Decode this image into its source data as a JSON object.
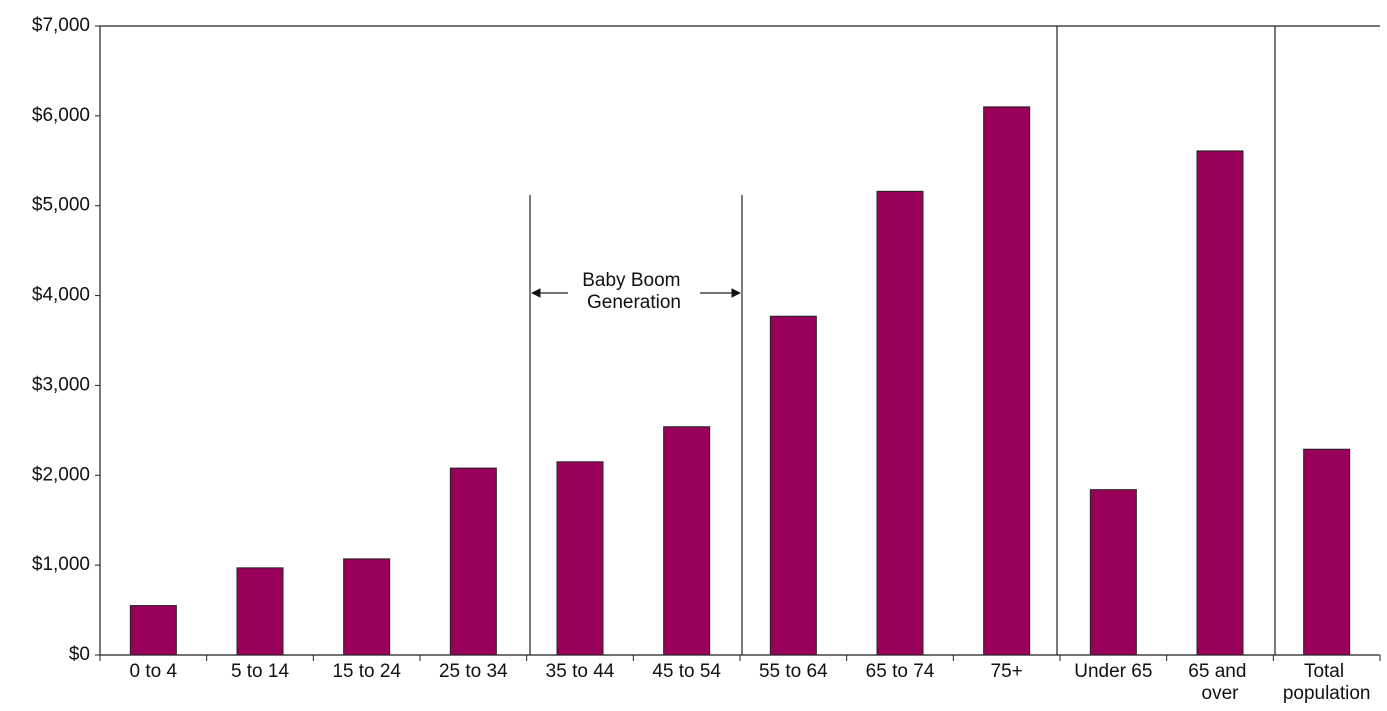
{
  "chart_data": {
    "type": "bar",
    "categories": [
      "0 to 4",
      "5 to 14",
      "15 to 24",
      "25 to 34",
      "35 to 44",
      "45 to 54",
      "55 to 64",
      "65 to 74",
      "75+",
      "Under 65",
      "65 and over",
      "Total population"
    ],
    "values": [
      550,
      970,
      1070,
      2080,
      2150,
      2540,
      3770,
      5160,
      6100,
      1840,
      5610,
      2290
    ],
    "color": "#990059",
    "ylim": [
      0,
      7000
    ],
    "yticks": [
      {
        "value": 0,
        "label": "$0"
      },
      {
        "value": 1000,
        "label": "$1,000"
      },
      {
        "value": 2000,
        "label": "$2,000"
      },
      {
        "value": 3000,
        "label": "$3,000"
      },
      {
        "value": 4000,
        "label": "$4,000"
      },
      {
        "value": 5000,
        "label": "$5,000"
      },
      {
        "value": 6000,
        "label": "$6,000"
      },
      {
        "value": 7000,
        "label": "$7,000"
      }
    ],
    "annotation": "Baby Boom Generation"
  }
}
